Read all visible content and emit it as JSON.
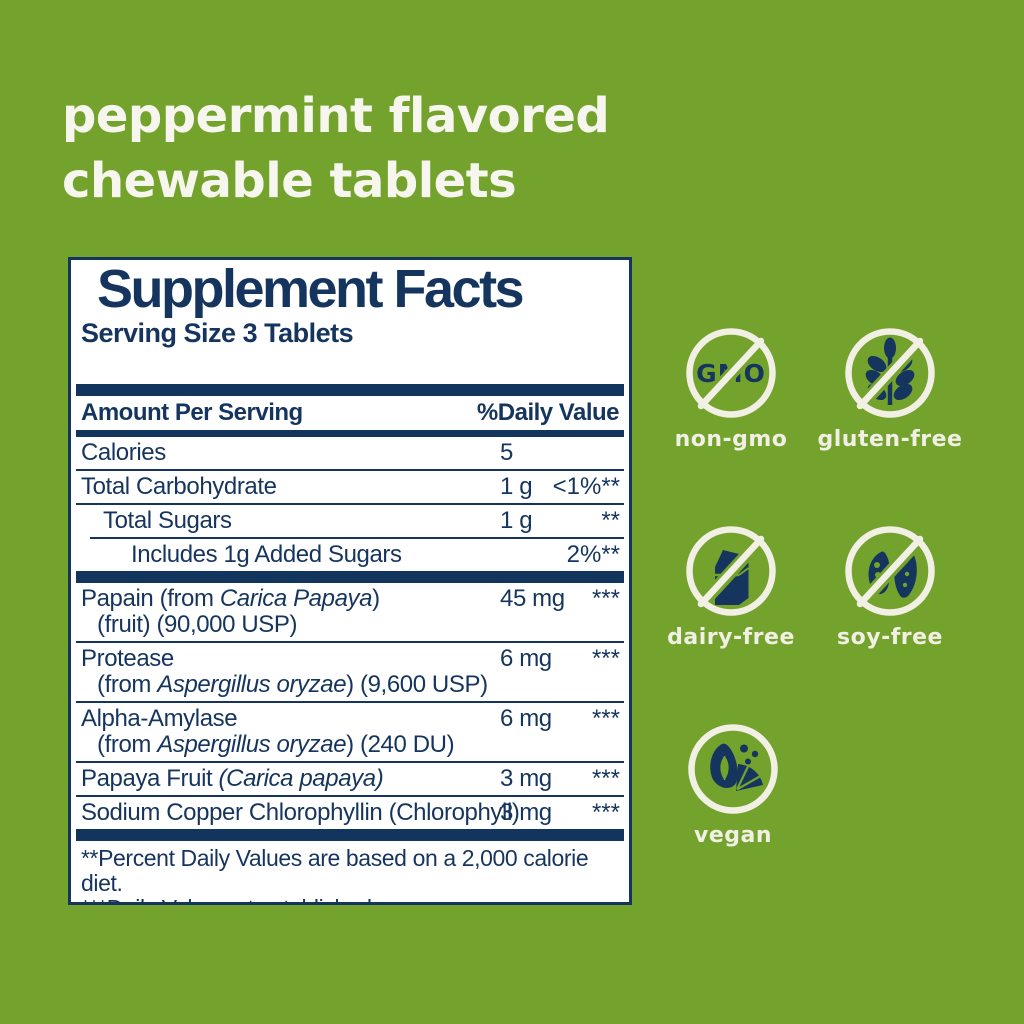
{
  "headline": {
    "line1": "peppermint flavored",
    "line2": "chewable tablets"
  },
  "panel": {
    "title": "Supplement Facts",
    "serving_size": "Serving Size 3 Tablets",
    "header": {
      "amount_label": "Amount Per Serving",
      "dv_label": "%Daily Value"
    },
    "rows": [
      {
        "lines": [
          [
            {
              "t": "Calories"
            }
          ]
        ],
        "amount": "5",
        "dv": "",
        "sep": "none",
        "indent": 0
      },
      {
        "lines": [
          [
            {
              "t": "Total Carbohydrate"
            }
          ]
        ],
        "amount": "1 g",
        "dv": "<1%**",
        "sep": "thin",
        "indent": 0
      },
      {
        "lines": [
          [
            {
              "t": "Total Sugars"
            }
          ]
        ],
        "amount": "1 g",
        "dv": "**",
        "sep": "thin",
        "indent": 1
      },
      {
        "lines": [
          [
            {
              "t": "Includes 1g Added Sugars"
            }
          ]
        ],
        "amount": "",
        "dv": "2%**",
        "sep": "thin-ind",
        "indent": 2
      },
      {
        "divider": "thick"
      },
      {
        "lines": [
          [
            {
              "t": "Papain (from "
            },
            {
              "t": "Carica Papaya",
              "i": true
            },
            {
              "t": ")"
            }
          ],
          [
            {
              "t": "(fruit) (90,000 USP)"
            }
          ]
        ],
        "amount": "45 mg",
        "dv": "***",
        "sep": "none",
        "indent": 0
      },
      {
        "lines": [
          [
            {
              "t": "Protease"
            }
          ],
          [
            {
              "t": "(from "
            },
            {
              "t": "Aspergillus oryzae",
              "i": true
            },
            {
              "t": ") (9,600 USP)"
            }
          ]
        ],
        "amount": "6 mg",
        "dv": "***",
        "sep": "thin",
        "indent": 0
      },
      {
        "lines": [
          [
            {
              "t": "Alpha-Amylase"
            }
          ],
          [
            {
              "t": "(from "
            },
            {
              "t": "Aspergillus oryzae",
              "i": true
            },
            {
              "t": ") (240 DU)"
            }
          ]
        ],
        "amount": "6 mg",
        "dv": "***",
        "sep": "thin",
        "indent": 0
      },
      {
        "lines": [
          [
            {
              "t": "Papaya Fruit "
            },
            {
              "t": "(Carica papaya)",
              "i": true
            }
          ]
        ],
        "amount": "3 mg",
        "dv": "***",
        "sep": "thin",
        "indent": 0
      },
      {
        "lines": [
          [
            {
              "t": "Sodium Copper Chlorophyllin (Chlorophyll)"
            }
          ]
        ],
        "amount": "3 mg",
        "dv": "***",
        "sep": "thin",
        "indent": 0
      },
      {
        "divider": "thick"
      }
    ],
    "footnotes": [
      "**Percent Daily Values are based on a 2,000 calorie diet.",
      "***Daily Value not established."
    ]
  },
  "badges": [
    {
      "id": "non-gmo",
      "label": "non-gmo",
      "icon": "gmo-icon",
      "icon_text": "GMO",
      "crossed": true
    },
    {
      "id": "gluten-free",
      "label": "gluten-free",
      "icon": "wheat-icon",
      "crossed": true
    },
    {
      "id": "dairy-free",
      "label": "dairy-free",
      "icon": "milk-carton-icon",
      "crossed": true
    },
    {
      "id": "soy-free",
      "label": "soy-free",
      "icon": "soy-pods-icon",
      "crossed": true
    },
    {
      "id": "vegan",
      "label": "vegan",
      "icon": "fruit-icon",
      "crossed": false
    }
  ],
  "colors": {
    "background": "#73a32d",
    "navy": "#16355e",
    "bar_navy": "#12355e",
    "panel_bg": "#ffffff",
    "cream": "#f2efe4",
    "headline_text": "#f7f6ee"
  }
}
